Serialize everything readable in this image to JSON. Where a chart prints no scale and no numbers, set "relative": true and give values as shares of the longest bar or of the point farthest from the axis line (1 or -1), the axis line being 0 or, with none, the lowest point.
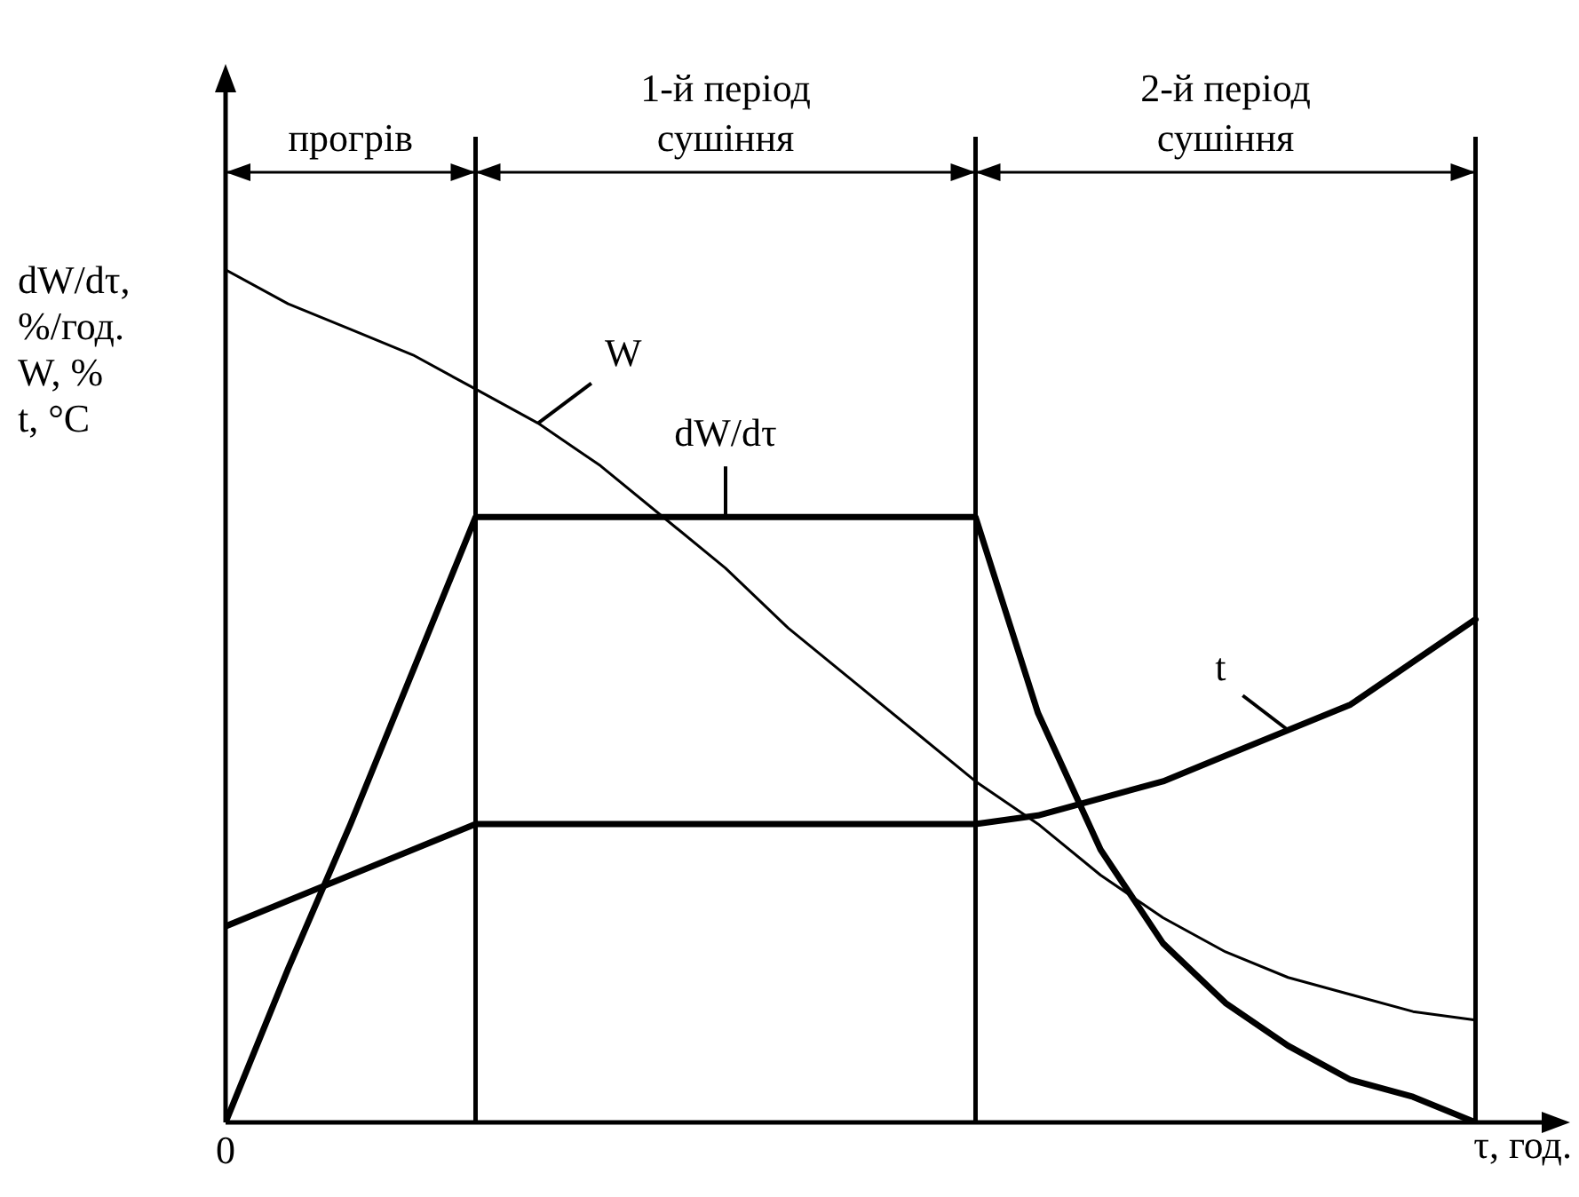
{
  "chart_data": {
    "type": "line",
    "relative": true,
    "xlabel": "τ, год.",
    "ylabel": "dW/dτ,\n%/год.\nW, %\nt, °C",
    "categories": [
      null,
      null,
      null,
      null,
      null,
      null,
      null,
      null,
      null,
      null,
      null,
      null,
      null,
      null,
      null,
      null,
      null,
      null,
      null,
      null,
      null
    ],
    "annotations": [
      "0",
      "прогрів",
      "1-й період сушіння",
      "2-й період сушіння"
    ],
    "series": [
      {
        "name": "W",
        "color": "#000000",
        "values": [
          1,
          0.96,
          0.93,
          0.9,
          0.86,
          0.82,
          0.77,
          0.71,
          0.65,
          0.58,
          0.52,
          0.46,
          0.4,
          0.35,
          0.29,
          0.24,
          0.2,
          0.17,
          0.15,
          0.13,
          0.12
        ]
      },
      {
        "name": "dW/dτ",
        "color": "#000000",
        "values": [
          0,
          0.18,
          0.35,
          0.53,
          0.71,
          0.71,
          0.71,
          0.71,
          0.71,
          0.71,
          0.71,
          0.71,
          0.71,
          0.48,
          0.32,
          0.21,
          0.14,
          0.09,
          0.05,
          0.03,
          0
        ]
      },
      {
        "name": "t",
        "color": "#000000",
        "values": [
          0.23,
          0.26,
          0.29,
          0.32,
          0.35,
          0.35,
          0.35,
          0.35,
          0.35,
          0.35,
          0.35,
          0.35,
          0.35,
          0.36,
          0.38,
          0.4,
          0.43,
          0.46,
          0.49,
          0.54,
          0.59
        ]
      }
    ],
    "grid": "x",
    "legend": false,
    "marker": "none",
    "line_style": "solid"
  }
}
